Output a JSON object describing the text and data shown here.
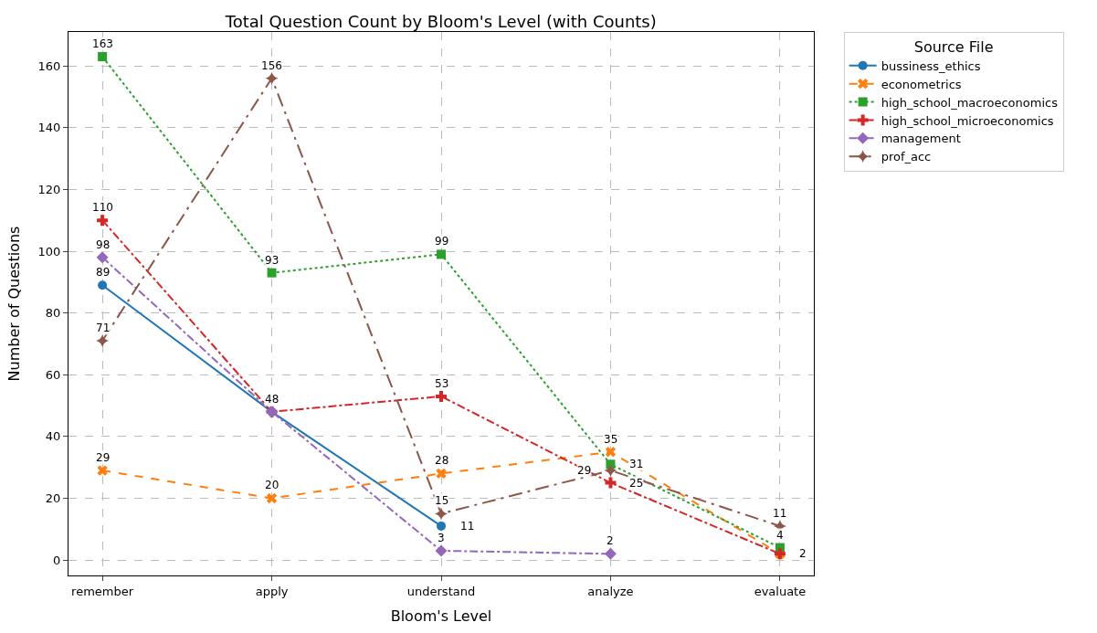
{
  "chart_data": {
    "type": "line",
    "title": "Total Question Count by Bloom's Level (with Counts)",
    "xlabel": "Bloom's Level",
    "ylabel": "Number of Questions",
    "legend_title": "Source File",
    "categories": [
      "remember",
      "apply",
      "understand",
      "analyze",
      "evaluate"
    ],
    "series": [
      {
        "name": "bussiness_ethics",
        "color": "#1f77b4",
        "marker": "circle",
        "line_style": "solid",
        "values": [
          89,
          48,
          11,
          null,
          null
        ],
        "value_labels": [
          "89",
          null,
          "11",
          null,
          null
        ]
      },
      {
        "name": "econometrics",
        "color": "#ff7f0e",
        "marker": "x",
        "line_style": "dashed",
        "values": [
          29,
          20,
          28,
          35,
          2
        ],
        "value_labels": [
          "29",
          "20",
          "28",
          "35",
          null
        ]
      },
      {
        "name": "high_school_macroeconomics",
        "color": "#2ca02c",
        "marker": "square",
        "line_style": "dotted",
        "values": [
          163,
          93,
          99,
          31,
          4
        ]
      },
      {
        "name": "high_school_microeconomics",
        "color": "#d62728",
        "marker": "cross",
        "line_style": "dashdot",
        "values": [
          110,
          48,
          53,
          25,
          2
        ]
      },
      {
        "name": "management",
        "color": "#9467bd",
        "marker": "diamond",
        "line_style": "dashdot",
        "values": [
          98,
          48,
          3,
          2,
          null
        ],
        "value_labels": [
          "98",
          null,
          "3",
          "2",
          null
        ]
      },
      {
        "name": "prof_acc",
        "color": "#8c564b",
        "marker": "star",
        "line_style": "longdashdot",
        "values": [
          71,
          156,
          15,
          29,
          11
        ]
      }
    ],
    "ylim": [
      -5,
      171
    ],
    "yticks": [
      0,
      20,
      40,
      60,
      80,
      100,
      120,
      140,
      160
    ],
    "grid": true,
    "legend": "top right",
    "data_labels": true
  }
}
